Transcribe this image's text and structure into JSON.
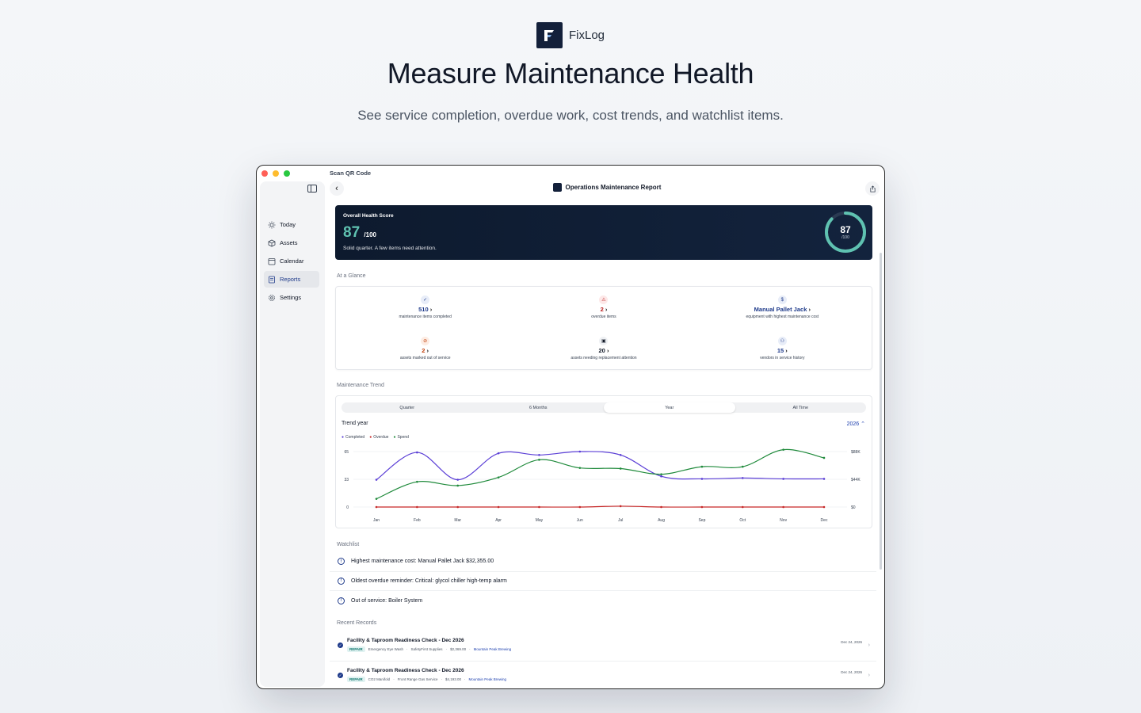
{
  "brand": {
    "name": "FixLog",
    "logo_letter": "F"
  },
  "hero": {
    "title": "Measure Maintenance Health",
    "subtitle": "See service completion, overdue work, cost trends, and watchlist items."
  },
  "window": {
    "top_label": "Scan QR Code",
    "title": "Operations Maintenance Report"
  },
  "sidebar": {
    "items": [
      {
        "label": "Today",
        "icon": "sun-icon"
      },
      {
        "label": "Assets",
        "icon": "cube-icon"
      },
      {
        "label": "Calendar",
        "icon": "calendar-icon"
      },
      {
        "label": "Reports",
        "icon": "report-icon",
        "active": true
      },
      {
        "label": "Settings",
        "icon": "gear-icon"
      }
    ]
  },
  "health": {
    "label": "Overall Health Score",
    "score": "87",
    "out_of": "/100",
    "note": "Solid quarter. A few items need attention.",
    "ring_value": "87",
    "ring_sub": "/100",
    "ring_fraction": 0.87,
    "ring_color": "#5fc2b1"
  },
  "glance": {
    "label": "At a Glance",
    "items": [
      {
        "value": "510",
        "desc": "maintenance items completed",
        "icon": "check-circle-icon",
        "color": "#1e3a8a"
      },
      {
        "value": "2",
        "desc": "overdue items",
        "icon": "warning-icon",
        "color": "#b91c1c"
      },
      {
        "value": "Manual Pallet Jack",
        "desc": "equipment with highest maintenance cost",
        "icon": "dollar-icon",
        "color": "#1e3a8a"
      },
      {
        "value": "2",
        "desc": "assets marked out of service",
        "icon": "out-of-service-icon",
        "color": "#c2410c"
      },
      {
        "value": "20",
        "desc": "assets needing replacement attention",
        "icon": "box-icon",
        "color": "#111827"
      },
      {
        "value": "15",
        "desc": "vendors in service history",
        "icon": "people-icon",
        "color": "#1e3a8a"
      }
    ]
  },
  "trend": {
    "label": "Maintenance Trend",
    "segments": [
      "Quarter",
      "6 Months",
      "Year",
      "All Time"
    ],
    "active_segment": "Year",
    "year_label": "Trend year",
    "year_value": "2026 ⌃",
    "legend": [
      {
        "name": "Completed",
        "color": "#5b3fd6"
      },
      {
        "name": "Overdue",
        "color": "#c62828"
      },
      {
        "name": "Spend",
        "color": "#1f8a3b"
      }
    ]
  },
  "chart_data": {
    "type": "line",
    "categories": [
      "Jan",
      "Feb",
      "Mar",
      "Apr",
      "May",
      "Jun",
      "Jul",
      "Aug",
      "Sep",
      "Oct",
      "Nov",
      "Dec"
    ],
    "y_ticks_left": [
      "65",
      "33",
      "0"
    ],
    "y_ticks_right": [
      "$88K",
      "$44K",
      "$0"
    ],
    "ylim_left": [
      0,
      65
    ],
    "ylim_right": [
      0,
      88000
    ],
    "series": [
      {
        "name": "Completed",
        "axis": "left",
        "color": "#5b3fd6",
        "values": [
          32,
          64,
          32,
          63,
          61,
          65,
          61,
          36,
          33,
          34,
          33,
          33
        ]
      },
      {
        "name": "Overdue",
        "axis": "left",
        "color": "#c62828",
        "values": [
          0,
          0,
          0,
          0,
          0,
          0,
          1,
          0,
          0,
          0,
          0,
          0
        ]
      },
      {
        "name": "Spend",
        "axis": "right",
        "color": "#1f8a3b",
        "values": [
          13000,
          40000,
          34000,
          47000,
          75000,
          62000,
          61000,
          52000,
          64000,
          64000,
          91000,
          78000
        ]
      }
    ]
  },
  "watchlist": {
    "label": "Watchlist",
    "items": [
      "Highest maintenance cost: Manual Pallet Jack $32,355.00",
      "Oldest overdue reminder: Critical: glycol chiller high-temp alarm",
      "Out of service: Boiler System"
    ]
  },
  "records": {
    "label": "Recent Records",
    "items": [
      {
        "title": "Facility & Taproom Readiness Check - Dec 2026",
        "tag": "REPAIR",
        "asset": "Emergency Eye Wash",
        "vendor": "SafetyFirst Supplies",
        "cost": "$2,369.00",
        "venue": "Mountain Peak Brewing",
        "date": "Dec 24, 2026"
      },
      {
        "title": "Facility & Taproom Readiness Check - Dec 2026",
        "tag": "REPAIR",
        "asset": "CO2 Manifold",
        "vendor": "Front Range Gas Service",
        "cost": "$4,193.00",
        "venue": "Mountain Peak Brewing",
        "date": "Dec 24, 2026"
      }
    ]
  }
}
